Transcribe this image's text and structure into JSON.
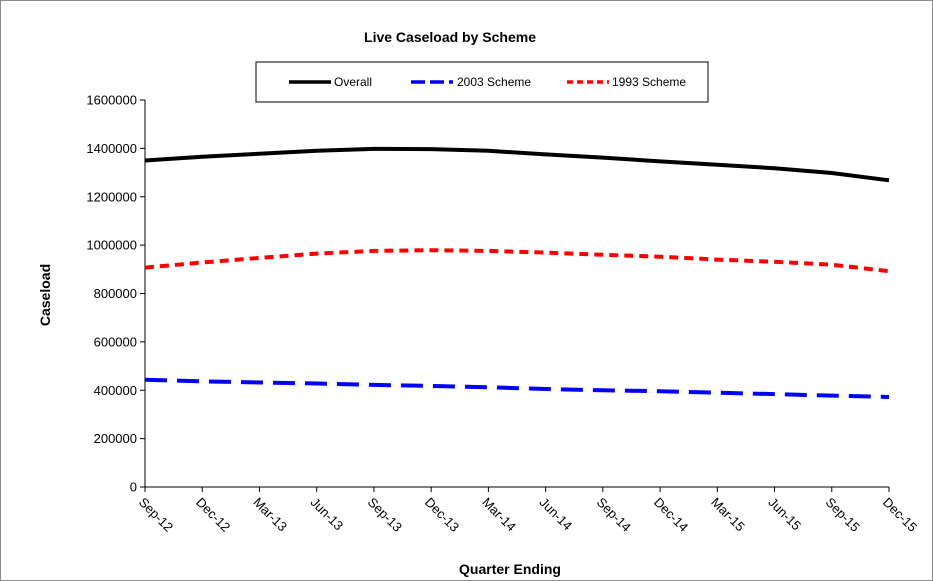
{
  "chart_data": {
    "type": "line",
    "title": "Live Caseload by Scheme",
    "xlabel": "Quarter Ending",
    "ylabel": "Caseload",
    "ylim": [
      0,
      1600000
    ],
    "yticks": [
      "0",
      "200000",
      "400000",
      "600000",
      "800000",
      "1000000",
      "1200000",
      "1400000",
      "1600000"
    ],
    "categories": [
      "Sep-12",
      "Dec-12",
      "Mar-13",
      "Jun-13",
      "Sep-13",
      "Dec-13",
      "Mar-14",
      "Jun-14",
      "Sep-14",
      "Dec-14",
      "Mar-15",
      "Jun-15",
      "Sep-15",
      "Dec-15"
    ],
    "legend_position": "top",
    "grid": false,
    "series": [
      {
        "name": "Overall",
        "color": "#000000",
        "dash": "solid",
        "values": [
          1350000,
          1365000,
          1378000,
          1390000,
          1398000,
          1397000,
          1390000,
          1375000,
          1362000,
          1346000,
          1332000,
          1318000,
          1298000,
          1268000
        ]
      },
      {
        "name": "2003 Scheme",
        "color": "#0000ff",
        "dash": "long-dash",
        "values": [
          443000,
          437000,
          432000,
          428000,
          422000,
          418000,
          412000,
          405000,
          400000,
          396000,
          390000,
          384000,
          378000,
          372000
        ]
      },
      {
        "name": "1993 Scheme",
        "color": "#ff0000",
        "dash": "short-dash",
        "values": [
          907000,
          928000,
          947000,
          965000,
          976000,
          979000,
          976000,
          969000,
          960000,
          952000,
          940000,
          931000,
          919000,
          892000
        ]
      }
    ]
  }
}
